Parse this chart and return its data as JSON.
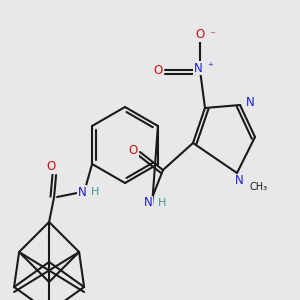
{
  "bg_color": "#e8e8e8",
  "bond_color": "#1a1a1a",
  "bond_width": 1.5,
  "dbo": 0.012,
  "atom_colors": {
    "C": "#1a1a1a",
    "N": "#1c1cd4",
    "O": "#cc1111",
    "H": "#3a9a9a"
  },
  "fs": 8.5,
  "fss": 7.0
}
